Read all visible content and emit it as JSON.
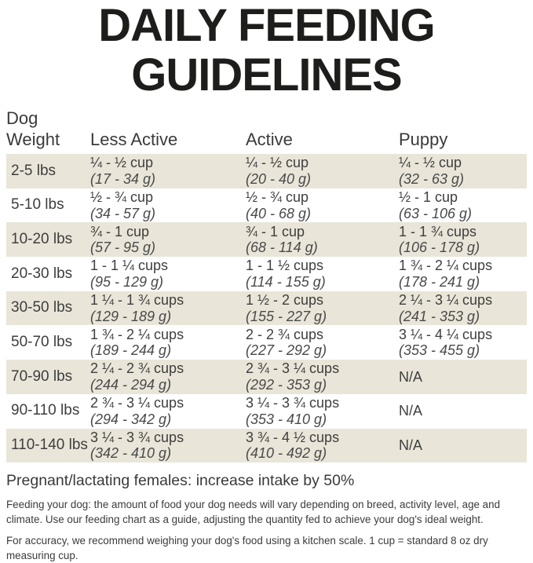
{
  "title": {
    "line1": "DAILY FEEDING",
    "line2": "GUIDELINES"
  },
  "table": {
    "headers": {
      "weight_line1": "Dog",
      "weight_line2": "Weight",
      "less_active": "Less Active",
      "active": "Active",
      "puppy": "Puppy"
    },
    "rows": [
      {
        "weight": "2-5 lbs",
        "less_active": {
          "cups": "¼ - ½ cup",
          "grams": "(17 - 34 g)"
        },
        "active": {
          "cups": "¼ - ½ cup",
          "grams": "(20 - 40 g)"
        },
        "puppy": {
          "cups": "¼ - ½ cup",
          "grams": "(32 - 63 g)"
        }
      },
      {
        "weight": "5-10 lbs",
        "less_active": {
          "cups": "½ - ¾ cup",
          "grams": "(34 - 57 g)"
        },
        "active": {
          "cups": "½ - ¾ cup",
          "grams": "(40 - 68 g)"
        },
        "puppy": {
          "cups": "½ - 1 cup",
          "grams": "(63 - 106 g)"
        }
      },
      {
        "weight": "10-20 lbs",
        "less_active": {
          "cups": "¾ - 1 cup",
          "grams": "(57 - 95 g)"
        },
        "active": {
          "cups": "¾ - 1 cup",
          "grams": "(68 - 114 g)"
        },
        "puppy": {
          "cups": "1 - 1 ¾ cups",
          "grams": "(106 - 178 g)"
        }
      },
      {
        "weight": "20-30 lbs",
        "less_active": {
          "cups": "1 - 1 ¼ cups",
          "grams": "(95 - 129 g)"
        },
        "active": {
          "cups": "1 - 1 ½ cups",
          "grams": "(114 - 155 g)"
        },
        "puppy": {
          "cups": "1 ¾ - 2 ¼ cups",
          "grams": "(178 - 241 g)"
        }
      },
      {
        "weight": "30-50 lbs",
        "less_active": {
          "cups": "1 ¼ - 1 ¾ cups",
          "grams": "(129 - 189 g)"
        },
        "active": {
          "cups": "1 ½ - 2 cups",
          "grams": "(155 - 227 g)"
        },
        "puppy": {
          "cups": "2 ¼ - 3 ¼ cups",
          "grams": "(241 - 353 g)"
        }
      },
      {
        "weight": "50-70 lbs",
        "less_active": {
          "cups": "1 ¾ - 2 ¼ cups",
          "grams": "(189 - 244 g)"
        },
        "active": {
          "cups": "2 - 2 ¾ cups",
          "grams": "(227 - 292 g)"
        },
        "puppy": {
          "cups": "3 ¼ - 4 ¼ cups",
          "grams": "(353 - 455 g)"
        }
      },
      {
        "weight": "70-90 lbs",
        "less_active": {
          "cups": "2 ¼ - 2 ¾ cups",
          "grams": "(244 - 294 g)"
        },
        "active": {
          "cups": "2 ¾ - 3 ¼ cups",
          "grams": "(292 - 353 g)"
        },
        "puppy": {
          "cups": "N/A",
          "grams": ""
        }
      },
      {
        "weight": "90-110 lbs",
        "less_active": {
          "cups": "2 ¾ - 3 ¼ cups",
          "grams": "(294 - 342 g)"
        },
        "active": {
          "cups": "3 ¼ - 3 ¾ cups",
          "grams": "(353 - 410 g)"
        },
        "puppy": {
          "cups": "N/A",
          "grams": ""
        }
      },
      {
        "weight": "110-140 lbs",
        "less_active": {
          "cups": "3 ¼ - 3 ¾ cups",
          "grams": "(342 - 410 g)"
        },
        "active": {
          "cups": "3 ¾ - 4 ½ cups",
          "grams": "(410 - 492 g)"
        },
        "puppy": {
          "cups": "N/A",
          "grams": ""
        }
      }
    ]
  },
  "notes": {
    "pregnant": "Pregnant/lactating females: increase intake by 50%",
    "para1": "Feeding your dog: the amount of food your dog needs will vary depending on breed, activity level, age and climate. Use our feeding chart as a guide, adjusting the quantity fed to achieve your dog's ideal weight.",
    "para2": "For accuracy, we recommend weighing your dog's food using a kitchen scale. 1 cup = standard 8 oz dry measuring cup."
  },
  "colors": {
    "row_shade": "#e9e5d8",
    "text": "#3e3e3e",
    "title": "#1d1d1b",
    "background": "#ffffff"
  }
}
